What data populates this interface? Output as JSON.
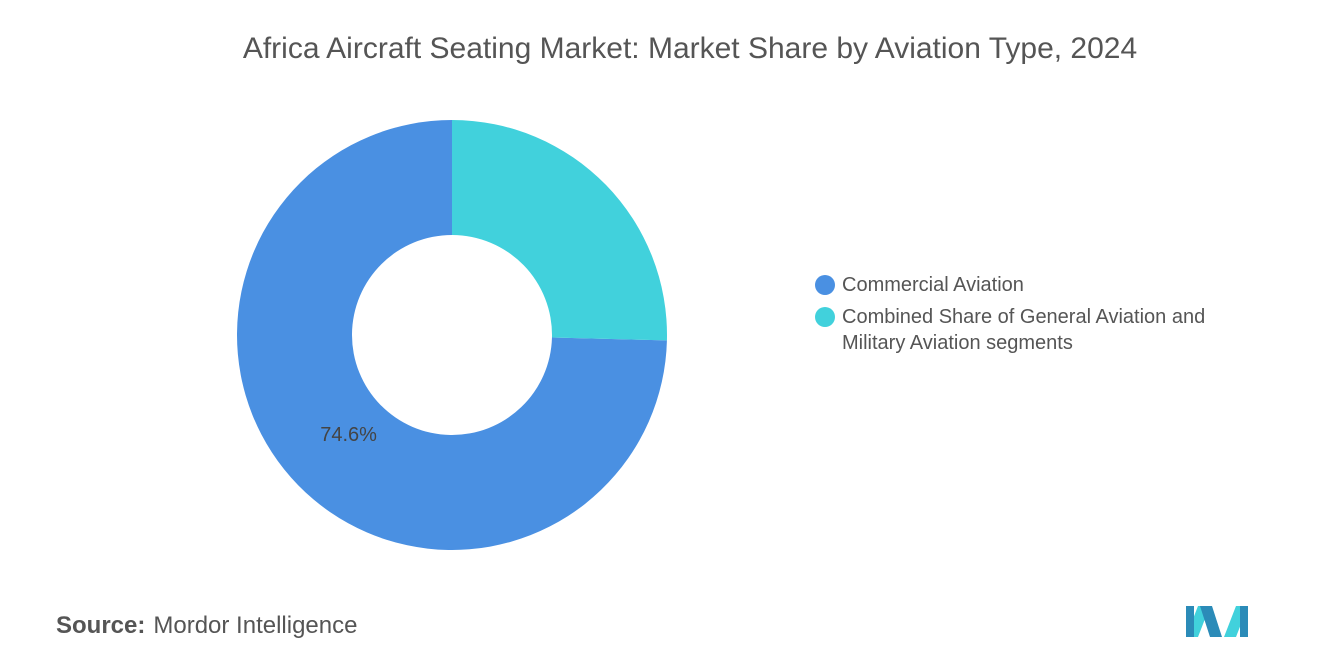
{
  "chart_data": {
    "type": "pie",
    "title": "Africa Aircraft Seating Market: Market Share by Aviation Type, 2024",
    "categories": [
      "Commercial Aviation",
      "Combined Share of General Aviation and Military Aviation segments"
    ],
    "values": [
      74.6,
      25.4
    ],
    "value_labels": [
      "74.6%",
      null
    ],
    "colors": [
      "#4a90e2",
      "#41d1dc"
    ]
  },
  "source": {
    "label": "Source:",
    "text": "Mordor Intelligence"
  }
}
